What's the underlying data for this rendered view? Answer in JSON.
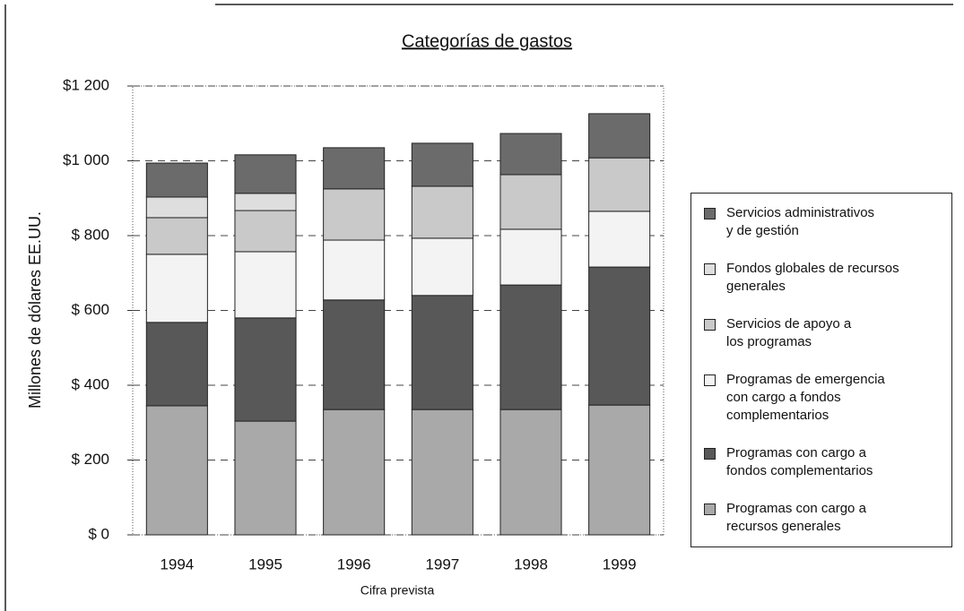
{
  "chart_data": {
    "type": "stacked_bar",
    "title": "Categorías de gastos",
    "y_label": "Millones de dólares EE.UU.",
    "x_label": "Cifra prevista",
    "categories": [
      "1994",
      "1995",
      "1996",
      "1997",
      "1998",
      "1999"
    ],
    "series": [
      {
        "name": "Programas con cargo a\nrecursos generales",
        "color": "#a9a9a9",
        "values": [
          345,
          304,
          335,
          335,
          335,
          347
        ]
      },
      {
        "name": "Programas con cargo a\nfondos complementarios",
        "color": "#585858",
        "values": [
          223,
          276,
          293,
          305,
          333,
          369
        ]
      },
      {
        "name": "Programas de emergencia\ncon cargo a fondos\ncomplementarios",
        "color": "#f3f3f3",
        "values": [
          182,
          177,
          160,
          153,
          149,
          149
        ]
      },
      {
        "name": "Servicios de apoyo a\nlos programas",
        "color": "#c9c9c9",
        "values": [
          98,
          110,
          137,
          139,
          146,
          143
        ]
      },
      {
        "name": "Fondos globales de recursos\ngenerales",
        "color": "#dedede",
        "values": [
          55,
          46,
          0,
          0,
          0,
          0
        ]
      },
      {
        "name": "Servicios administrativos\ny de gestión",
        "color": "#6b6b6b",
        "values": [
          91,
          103,
          110,
          115,
          110,
          118
        ]
      }
    ],
    "ylim": [
      0,
      1200
    ],
    "yticks": [
      {
        "value": 0,
        "label": "$ 0"
      },
      {
        "value": 200,
        "label": "$ 200"
      },
      {
        "value": 400,
        "label": "$ 400"
      },
      {
        "value": 600,
        "label": "$ 600"
      },
      {
        "value": 800,
        "label": "$ 800"
      },
      {
        "value": 1000,
        "label": "$1 000"
      },
      {
        "value": 1200,
        "label": "$1 200"
      }
    ],
    "grid": true
  }
}
